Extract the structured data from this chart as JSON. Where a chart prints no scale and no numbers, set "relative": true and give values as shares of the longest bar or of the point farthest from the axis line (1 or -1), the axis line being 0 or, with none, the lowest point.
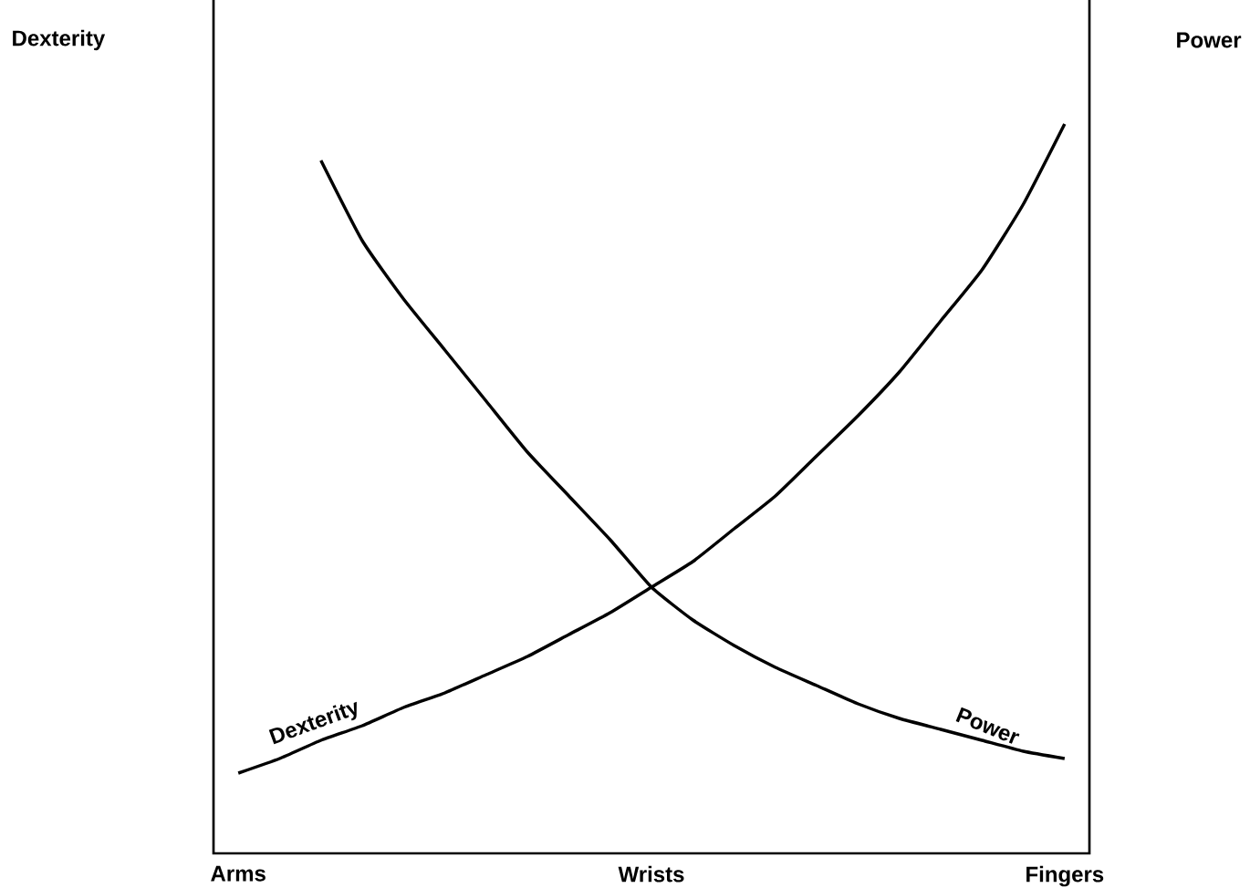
{
  "chart_data": {
    "type": "line",
    "relative": true,
    "annotations": [
      "Dexterity",
      "Power"
    ],
    "categories": [
      "Arms",
      null,
      null,
      null,
      null,
      null,
      null,
      null,
      null,
      null,
      "Wrists",
      null,
      null,
      null,
      null,
      null,
      null,
      null,
      null,
      null,
      "Fingers"
    ],
    "series": [
      {
        "name": "Dexterity",
        "color": "#000000",
        "values": [
          0.11,
          0.13,
          0.155,
          0.175,
          0.2,
          0.22,
          0.245,
          0.27,
          0.3,
          0.33,
          0.365,
          0.4,
          0.445,
          0.49,
          0.545,
          0.6,
          0.66,
          0.73,
          0.8,
          0.89,
          1.0
        ]
      },
      {
        "name": "Power",
        "color": "#000000",
        "values": [
          null,
          null,
          0.95,
          0.84,
          0.76,
          0.69,
          0.62,
          0.55,
          0.49,
          0.43,
          0.365,
          0.32,
          0.285,
          0.255,
          0.23,
          0.205,
          0.185,
          0.17,
          0.155,
          0.14,
          0.13
        ]
      }
    ],
    "legend": false,
    "marker": "none",
    "line_style": "solid"
  }
}
